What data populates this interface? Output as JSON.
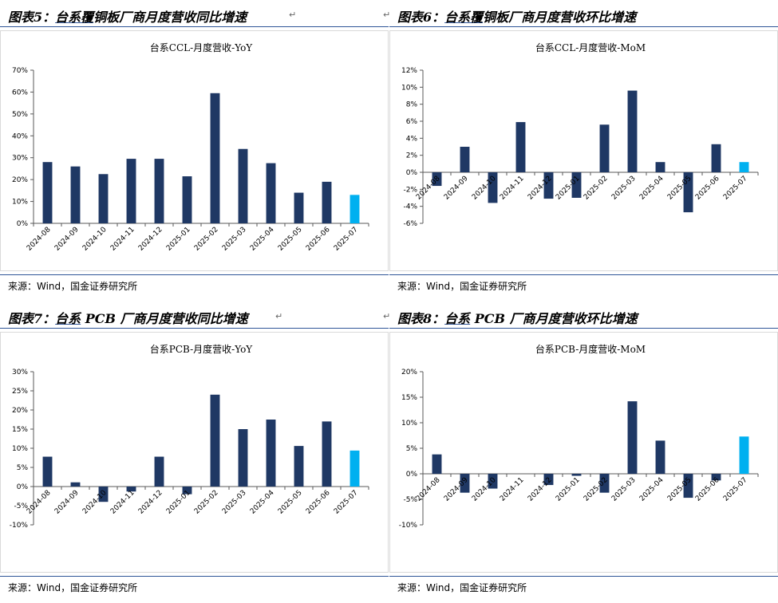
{
  "source_text": "来源：Wind，国金证券研究所",
  "return_mark": "↵",
  "colors": {
    "bar": "#1f3864",
    "highlight": "#00b0f0",
    "rule": "#2f5597"
  },
  "panels": [
    {
      "heading_prefix": "图表5：",
      "heading_u": "台系覆",
      "heading_rest": "铜板厂商月度营收同比增速"
    },
    {
      "heading_prefix": "图表6：",
      "heading_u": "台系覆",
      "heading_rest": "铜板厂商月度营收环比增速"
    },
    {
      "heading_prefix": "图表7：",
      "heading_u": "台系",
      "heading_rest": " PCB 厂商月度营收同比增速"
    },
    {
      "heading_prefix": "图表8：",
      "heading_u": "台系",
      "heading_rest": " PCB 厂商月度营收环比增速"
    }
  ],
  "chart_data": [
    {
      "type": "bar",
      "title": "台系CCL-月度营收-YoY",
      "categories": [
        "2024-08",
        "2024-09",
        "2024-10",
        "2024-11",
        "2024-12",
        "2025-01",
        "2025-02",
        "2025-03",
        "2025-04",
        "2025-05",
        "2025-06",
        "2025-07"
      ],
      "values": [
        28,
        26,
        22.5,
        29.5,
        29.5,
        21.5,
        59.5,
        34,
        27.5,
        14,
        19,
        13
      ],
      "ylim": [
        0,
        70
      ],
      "yticks": [
        0,
        10,
        20,
        30,
        40,
        50,
        60,
        70
      ],
      "yunit": "%",
      "highlight_last": true
    },
    {
      "type": "bar",
      "title": "台系CCL-月度营收-MoM",
      "categories": [
        "2024-08",
        "2024-09",
        "2024-10",
        "2024-11",
        "2024-12",
        "2025-01",
        "2025-02",
        "2025-03",
        "2025-04",
        "2025-05",
        "2025-06",
        "2025-07"
      ],
      "values": [
        -1.6,
        3,
        -3.6,
        5.9,
        -3.1,
        -3,
        5.6,
        9.6,
        1.2,
        -4.7,
        3.3,
        1.2
      ],
      "ylim": [
        -6,
        12
      ],
      "yticks": [
        -6,
        -4,
        -2,
        0,
        2,
        4,
        6,
        8,
        10,
        12
      ],
      "yunit": "%",
      "highlight_last": true
    },
    {
      "type": "bar",
      "title": "台系PCB-月度营收-YoY",
      "categories": [
        "2024-08",
        "2024-09",
        "2024-10",
        "2024-11",
        "2024-12",
        "2025-01",
        "2025-02",
        "2025-03",
        "2025-04",
        "2025-05",
        "2025-06",
        "2025-07"
      ],
      "values": [
        7.8,
        1.1,
        -4,
        -1.3,
        7.8,
        -2,
        24,
        15,
        17.5,
        10.6,
        17,
        9.4
      ],
      "ylim": [
        -10,
        30
      ],
      "yticks": [
        -10,
        -5,
        0,
        5,
        10,
        15,
        20,
        25,
        30
      ],
      "yunit": "%",
      "highlight_last": true
    },
    {
      "type": "bar",
      "title": "台系PCB-月度营收-MoM",
      "categories": [
        "2024-08",
        "2024-09",
        "2024-10",
        "2024-11",
        "2024-12",
        "2025-01",
        "2025-02",
        "2025-03",
        "2025-04",
        "2025-05",
        "2025-06",
        "2025-07"
      ],
      "values": [
        3.8,
        -3.7,
        -2.9,
        0,
        -2.2,
        -0.4,
        -3.7,
        14.2,
        6.5,
        -4.7,
        -1.3,
        7.3
      ],
      "ylim": [
        -10,
        20
      ],
      "yticks": [
        -10,
        -5,
        0,
        5,
        10,
        15,
        20
      ],
      "yunit": "%",
      "highlight_last": true
    }
  ]
}
